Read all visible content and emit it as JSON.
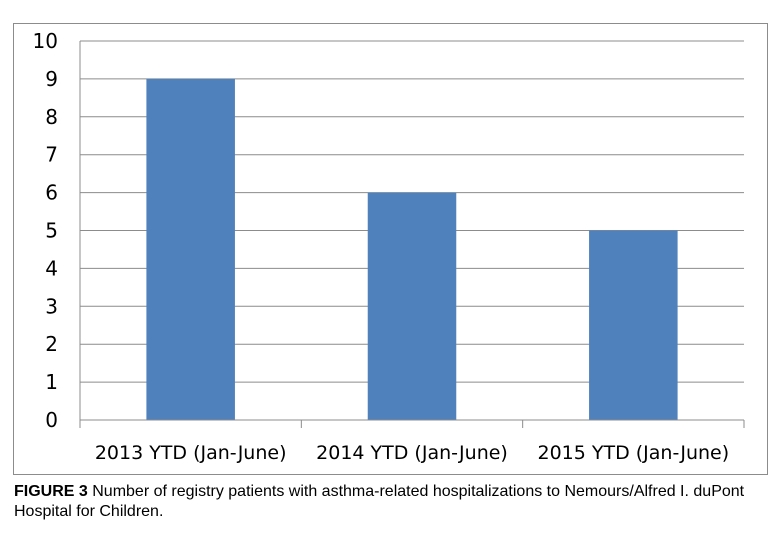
{
  "chart_data": {
    "type": "bar",
    "categories": [
      "2013 YTD (Jan-June)",
      "2014 YTD (Jan-June)",
      "2015 YTD (Jan-June)"
    ],
    "values": [
      9,
      6,
      5
    ],
    "ylim": [
      0,
      10
    ],
    "yticks": [
      "0",
      "1",
      "2",
      "3",
      "4",
      "5",
      "6",
      "7",
      "8",
      "9",
      "10"
    ],
    "grid": true,
    "legend": "none",
    "colors": {
      "bar": "#4f81bd",
      "grid": "#8c8c8c",
      "axis": "#8c8c8c"
    }
  },
  "caption": {
    "lead": "FIGURE 3",
    "text": " Number of registry patients with asthma-related hospitalizations to Nemours/Alfred I. duPont Hospital for Children."
  }
}
